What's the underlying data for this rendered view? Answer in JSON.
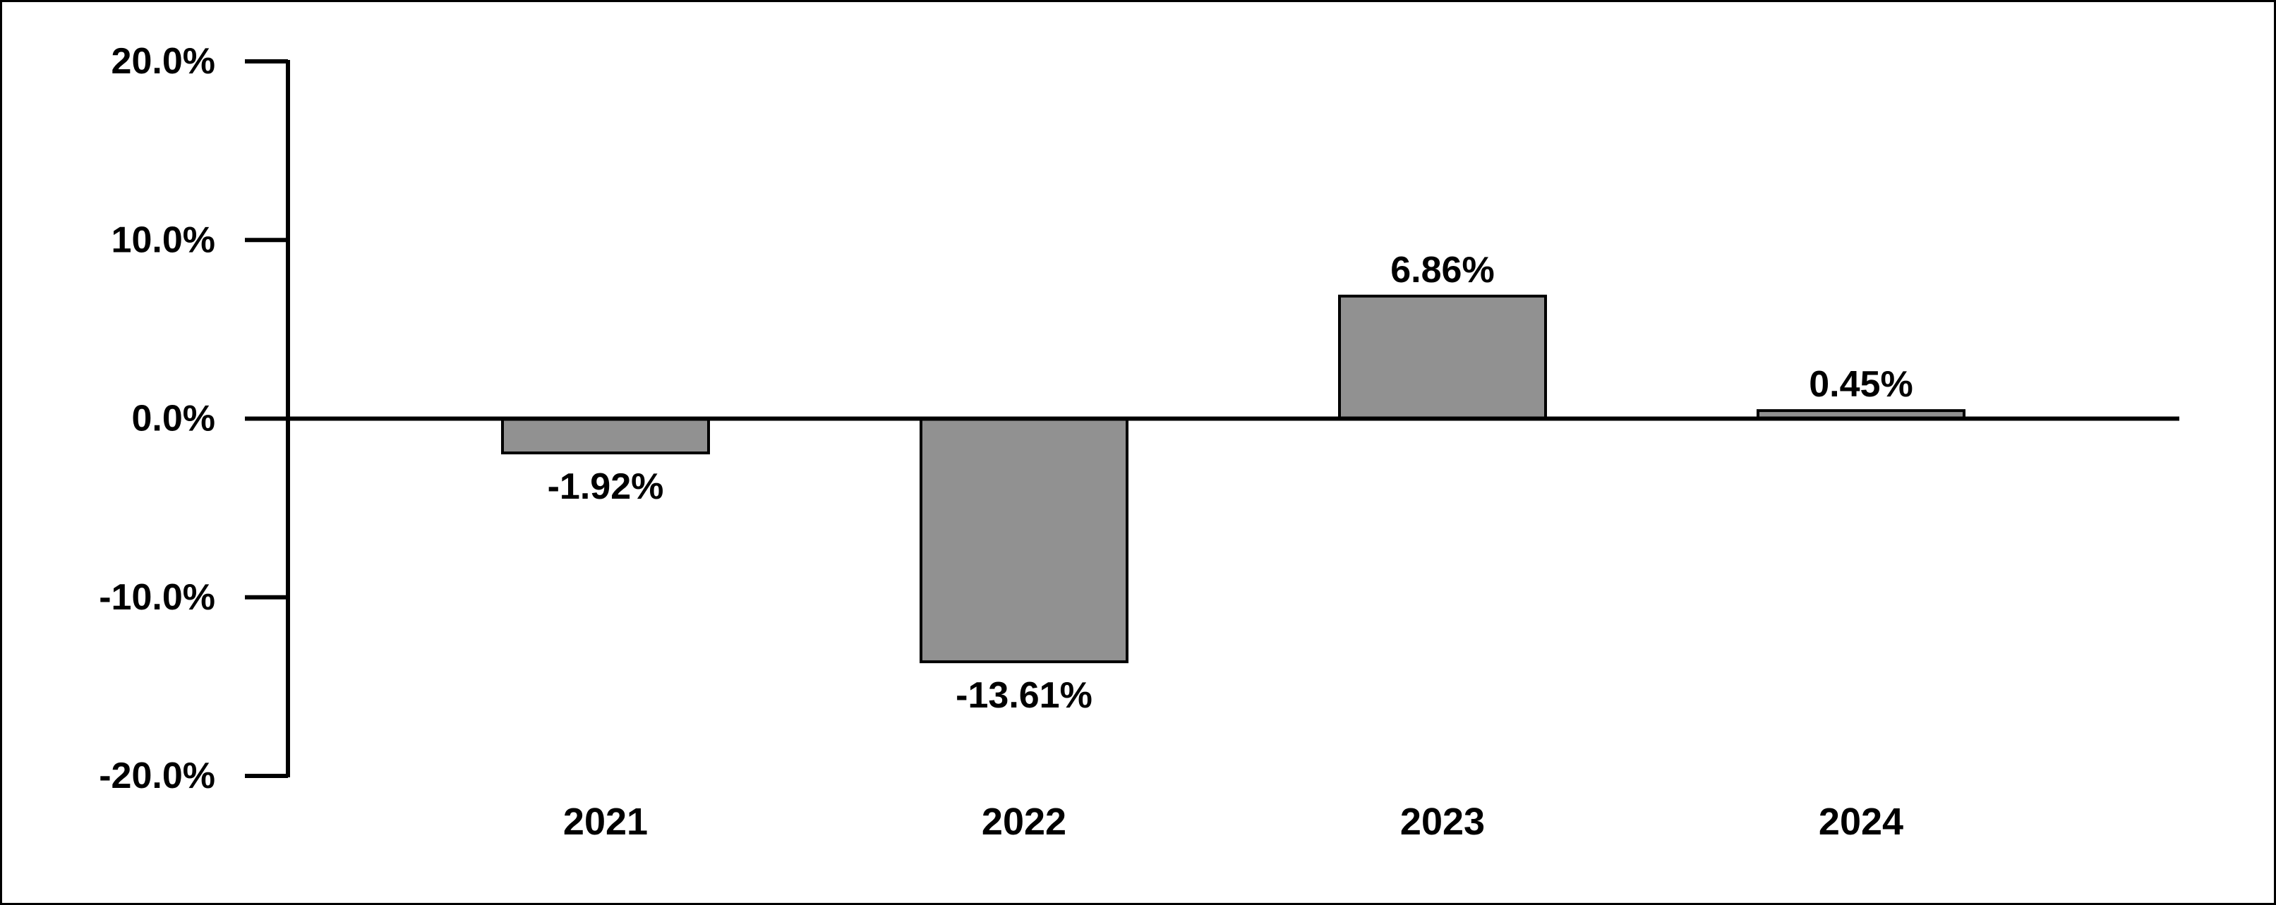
{
  "chart_data": {
    "type": "bar",
    "categories": [
      "2021",
      "2022",
      "2023",
      "2024"
    ],
    "values": [
      -1.92,
      -13.61,
      6.86,
      0.45
    ],
    "data_labels": [
      "-1.92%",
      "-13.61%",
      "6.86%",
      "0.45%"
    ],
    "ylim": [
      -20,
      20
    ],
    "y_ticks": [
      20,
      10,
      0,
      -10,
      -20
    ],
    "y_tick_labels": [
      "20.0%",
      "10.0%",
      "0.0%",
      "-10.0%",
      "-20.0%"
    ],
    "title": "",
    "xlabel": "",
    "ylabel": "",
    "grid": false,
    "legend": "none",
    "colors": {
      "bar_fill": "#919191",
      "bar_stroke": "#000000",
      "axis": "#000000",
      "text": "#000000",
      "background": "#ffffff"
    }
  }
}
